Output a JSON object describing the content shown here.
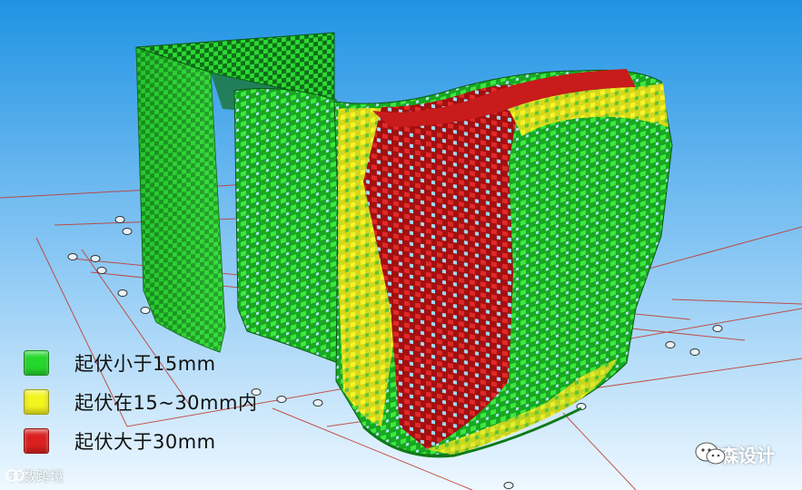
{
  "colors": {
    "background_top": "#2f9fe6",
    "background_bottom": "#f2f9ff",
    "green": "#22d42a",
    "yellow": "#f2f21c",
    "red": "#d81e1e",
    "grid_line": "#c0392b"
  },
  "legend": [
    {
      "label": "起伏小于15mm",
      "color": "#24d82c"
    },
    {
      "label": "起伏在15~30mm内",
      "color": "#f4f41e"
    },
    {
      "label": "起伏大于30mm",
      "color": "#dc1f1f"
    }
  ],
  "brand": {
    "icon": "wechat-icon",
    "text": "华森设计"
  },
  "watermark": {
    "icon": "camera-icon",
    "text": "大数跨境"
  }
}
